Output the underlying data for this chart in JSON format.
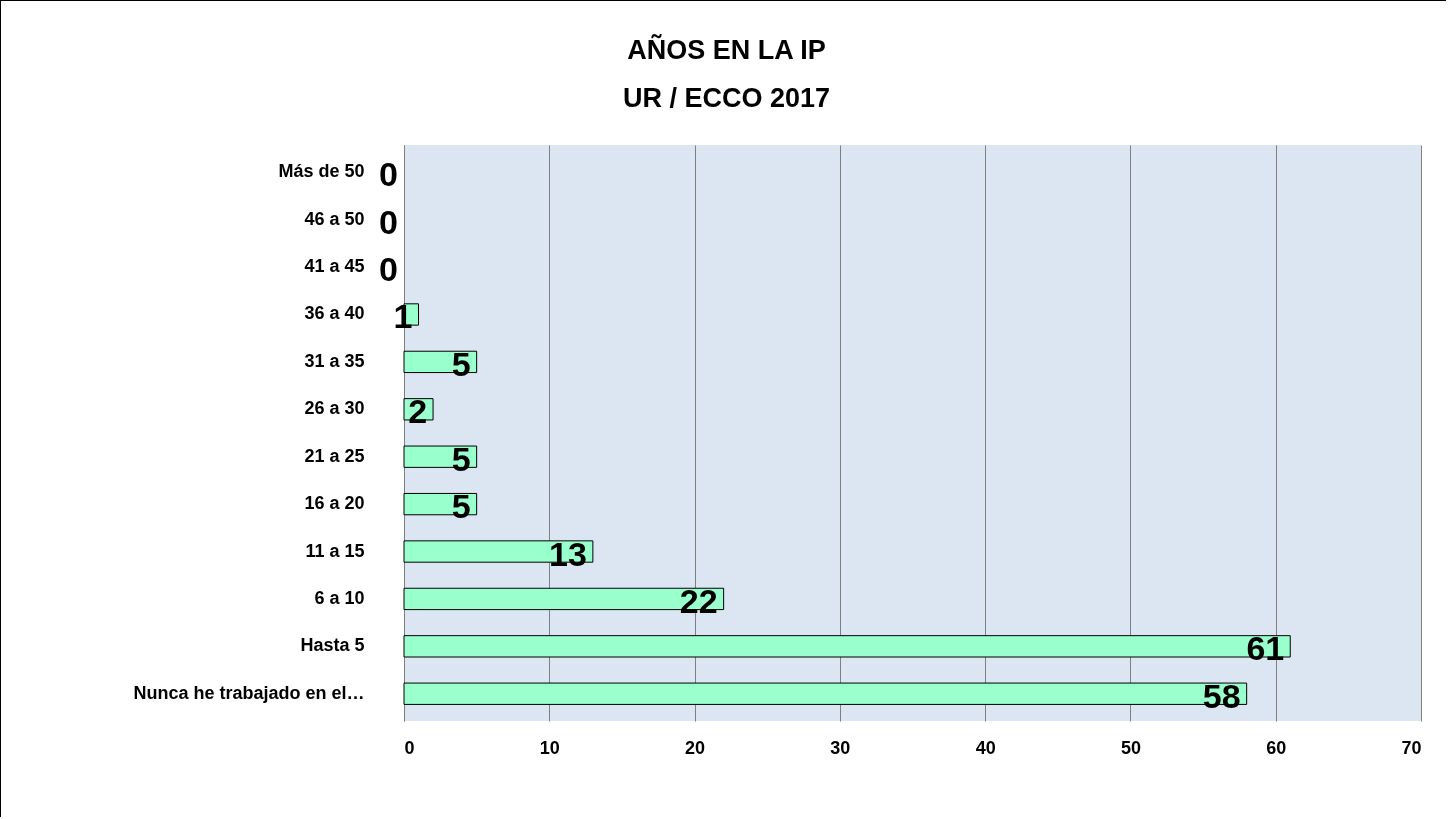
{
  "chart_data": {
    "type": "bar",
    "orientation": "horizontal",
    "title": "AÑOS EN LA IP\nUR / ECCO 2017",
    "categories": [
      "Más de 50",
      "46 a 50",
      "41 a 45",
      "36 a 40",
      "31 a 35",
      "26 a 30",
      "21 a 25",
      "16 a 20",
      "11 a 15",
      "6 a 10",
      "Hasta 5",
      "Nunca he trabajado en el…"
    ],
    "values": [
      0,
      0,
      0,
      1,
      5,
      2,
      5,
      5,
      13,
      22,
      61,
      58
    ],
    "color": "#99ffcc",
    "xlim": [
      0,
      70
    ],
    "xticks": [
      0,
      10,
      20,
      30,
      40,
      50,
      60,
      70
    ],
    "grid": "x",
    "data_labels": true
  }
}
